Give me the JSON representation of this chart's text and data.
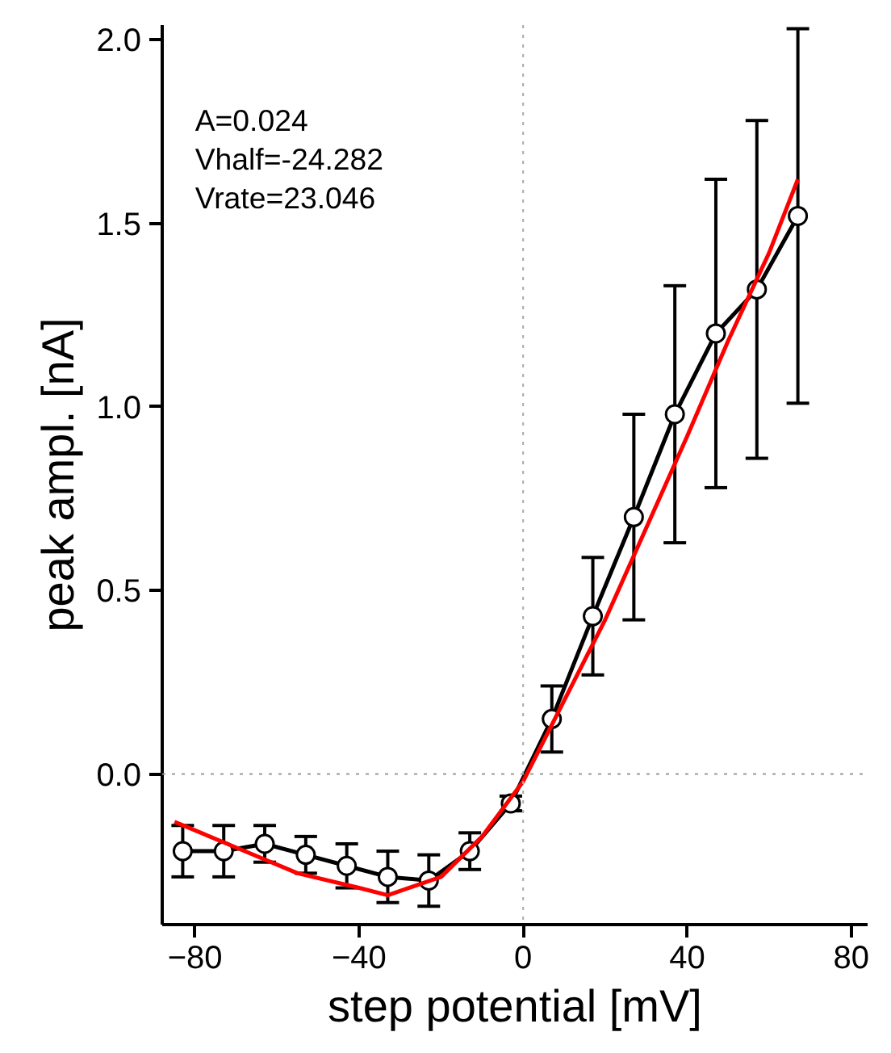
{
  "chart_data": {
    "type": "line",
    "xlabel": "step potential [mV]",
    "ylabel": "peak ampl. [nA]",
    "xlim": [
      -88,
      84
    ],
    "ylim": [
      -0.41,
      2.04
    ],
    "xticks": [
      -80,
      -40,
      0,
      40,
      80
    ],
    "yticks": [
      {
        "value": 0,
        "label": "0.0"
      },
      {
        "value": 0.5,
        "label": "0.5"
      },
      {
        "value": 1,
        "label": "1.0"
      },
      {
        "value": 1.5,
        "label": "1.5"
      },
      {
        "value": 2,
        "label": "2.0"
      }
    ],
    "grid": false,
    "series": [
      {
        "color": "#000000",
        "marker": "circle",
        "x": [
          -83,
          -73,
          -63,
          -53,
          -43,
          -33,
          -23,
          -13,
          -3,
          7,
          17,
          27,
          37,
          47,
          57,
          67
        ],
        "values": [
          -0.21,
          -0.21,
          -0.19,
          -0.22,
          -0.25,
          -0.28,
          -0.29,
          -0.21,
          -0.08,
          0.15,
          0.43,
          0.7,
          0.98,
          1.2,
          1.32,
          1.52
        ],
        "errors": [
          0.07,
          0.07,
          0.05,
          0.05,
          0.06,
          0.07,
          0.07,
          0.05,
          0.02,
          0.09,
          0.16,
          0.28,
          0.35,
          0.42,
          0.46,
          0.51
        ]
      },
      {
        "color": "#ff0000",
        "marker": "none",
        "x": [
          -85,
          -70,
          -55,
          -40,
          -33,
          -20,
          -10,
          0,
          10,
          20,
          30,
          40,
          50,
          60,
          67
        ],
        "values": [
          -0.13,
          -0.2,
          -0.27,
          -0.31,
          -0.33,
          -0.28,
          -0.17,
          -0.02,
          0.2,
          0.42,
          0.67,
          0.92,
          1.18,
          1.42,
          1.62
        ]
      }
    ],
    "ref_lines": [
      {
        "axis": "x",
        "value": 0,
        "color": "#aaaaaa",
        "line_style": "dotted"
      },
      {
        "axis": "y",
        "value": 0,
        "color": "#999999",
        "line_style": "dotted"
      }
    ],
    "annotations": [
      "A=0.024",
      "Vhalf=-24.282",
      "Vrate=23.046"
    ]
  }
}
